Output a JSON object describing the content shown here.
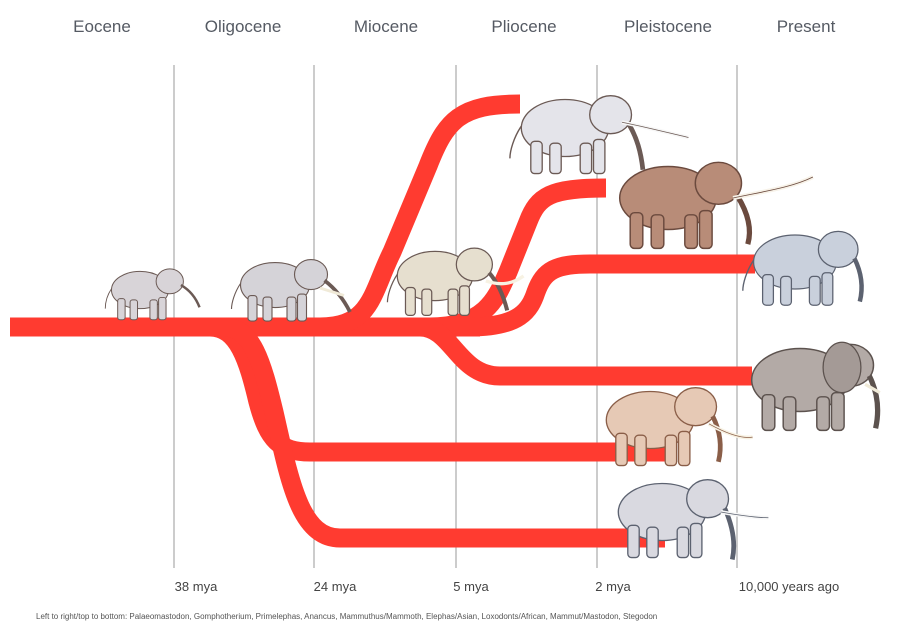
{
  "epochs": [
    "Eocene",
    "Oligocene",
    "Miocene",
    "Pliocene",
    "Pleistocene",
    "Present"
  ],
  "time_ticks": [
    "38 mya",
    "24 mya",
    "5 mya",
    "2 mya",
    "10,000 years ago"
  ],
  "caption": "Left to right/top to bottom: Palaeomastodon, Gomphotherium, Primelephas, Anancus, Mammuthus/Mammoth, Elephas/Asian, Loxodonts/African, Mammut/Mastodon, Stegodon",
  "colors": {
    "branch": "#ff3b30",
    "grid": "#9a9a9a",
    "epoch_text": "#555a63"
  },
  "animals": [
    {
      "name": "Palaeomastodon",
      "icon": "palaeomastodon-icon",
      "fill": "#d8d4d8"
    },
    {
      "name": "Gomphotherium",
      "icon": "gomphotherium-icon",
      "fill": "#d5d3d8"
    },
    {
      "name": "Primelephas",
      "icon": "primelephas-icon",
      "fill": "#e6dfcf"
    },
    {
      "name": "Anancus",
      "icon": "anancus-icon",
      "fill": "#e4e4ea"
    },
    {
      "name": "Mammuthus/Mammoth",
      "icon": "mammoth-icon",
      "fill": "#b88c78"
    },
    {
      "name": "Elephas/Asian",
      "icon": "asian-elephant-icon",
      "fill": "#c9d0dc"
    },
    {
      "name": "Loxodonts/African",
      "icon": "african-elephant-icon",
      "fill": "#b3aaa6"
    },
    {
      "name": "Mammut/Mastodon",
      "icon": "mastodon-icon",
      "fill": "#e6c9b5"
    },
    {
      "name": "Stegodon",
      "icon": "stegodon-icon",
      "fill": "#d9d9e0"
    }
  ]
}
